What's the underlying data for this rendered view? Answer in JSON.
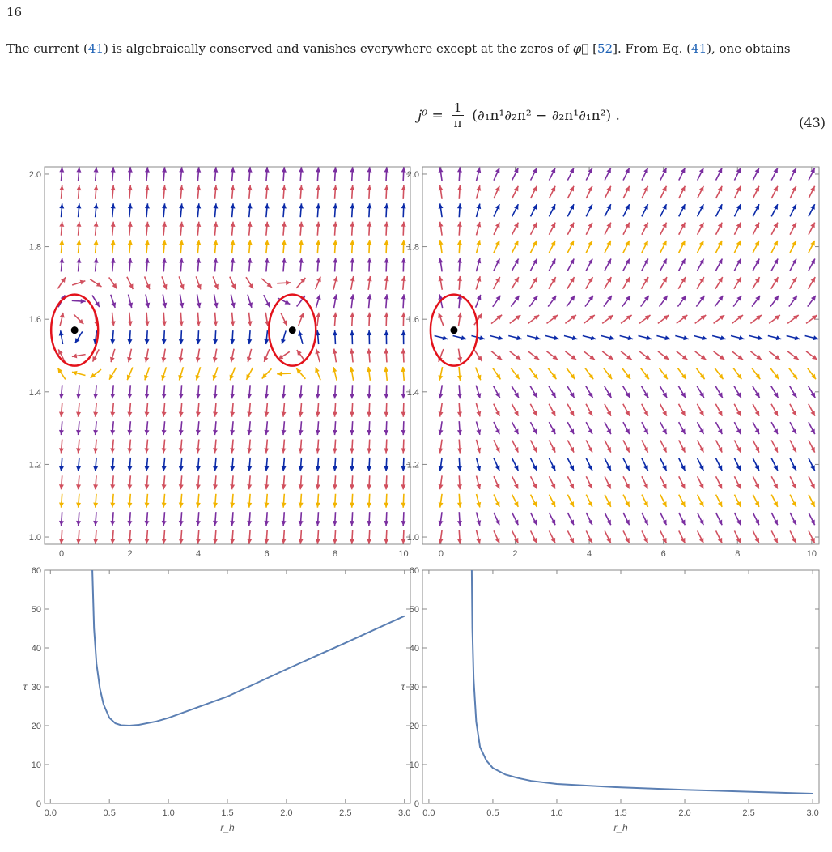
{
  "page": {
    "number": "16",
    "paragraph": {
      "part1": "The current (",
      "ref1": "41",
      "part2": ") is algebraically conserved and vanishes everywhere except at the zeros of ",
      "phi": "φ⃗",
      "part3": " [",
      "ref2": "52",
      "part4": "]. From Eq. (",
      "ref3": "41",
      "part5": "), one obtains"
    },
    "equation": {
      "lhs": "j⁰ =",
      "frac_num": "1",
      "frac_den": "π",
      "rhs": "(∂₁n¹∂₂n² − ∂₂n¹∂₁n²) .",
      "number": "(43)"
    }
  },
  "colors": {
    "pink": "#d1505e",
    "purple": "#7a2ea0",
    "blue": "#0b2aa8",
    "yellow": "#f2b400",
    "curve": "#5b7fb3",
    "circle": "#e3121b"
  },
  "chart_data": [
    {
      "type": "vector-field",
      "panel": "top-left",
      "xlim": [
        -0.5,
        10.2
      ],
      "ylim": [
        0.98,
        2.02
      ],
      "xticks": [
        "0",
        "2",
        "4",
        "6",
        "8",
        "10"
      ],
      "yticks": [
        "1.0",
        "1.2",
        "1.4",
        "1.6",
        "1.8",
        "2.0"
      ],
      "zero_points": [
        {
          "x": 0.38,
          "y": 1.57
        },
        {
          "x": 6.75,
          "y": 1.57
        }
      ]
    },
    {
      "type": "vector-field",
      "panel": "top-right",
      "xlim": [
        -0.5,
        10.2
      ],
      "ylim": [
        0.98,
        2.02
      ],
      "xticks": [
        "0",
        "2",
        "4",
        "6",
        "8",
        "10"
      ],
      "yticks": [
        "1.0",
        "1.2",
        "1.4",
        "1.6",
        "1.8",
        "2.0"
      ],
      "zero_points": [
        {
          "x": 0.35,
          "y": 1.57
        }
      ]
    },
    {
      "type": "line",
      "panel": "bottom-left",
      "xlabel": "r_h",
      "ylabel": "τ",
      "xlim": [
        -0.05,
        3.05
      ],
      "ylim": [
        0,
        60
      ],
      "xticks": [
        "0.0",
        "0.5",
        "1.0",
        "1.5",
        "2.0",
        "2.5",
        "3.0"
      ],
      "yticks": [
        "0",
        "10",
        "20",
        "30",
        "40",
        "50",
        "60"
      ],
      "x": [
        0.355,
        0.37,
        0.39,
        0.42,
        0.45,
        0.5,
        0.55,
        0.6,
        0.67,
        0.75,
        0.9,
        1.0,
        1.5,
        2.0,
        2.5,
        3.0
      ],
      "y": [
        60,
        45,
        36,
        29.5,
        25.5,
        22,
        20.6,
        20.1,
        20.0,
        20.2,
        21.1,
        22.0,
        27.5,
        34.5,
        41.3,
        48.2
      ]
    },
    {
      "type": "line",
      "panel": "bottom-right",
      "xlabel": "r_h",
      "ylabel": "τ",
      "xlim": [
        -0.05,
        3.05
      ],
      "ylim": [
        0,
        60
      ],
      "xticks": [
        "0.0",
        "0.5",
        "1.0",
        "1.5",
        "2.0",
        "2.5",
        "3.0"
      ],
      "yticks": [
        "0",
        "10",
        "20",
        "30",
        "40",
        "50",
        "60"
      ],
      "x": [
        0.335,
        0.34,
        0.35,
        0.37,
        0.4,
        0.45,
        0.5,
        0.6,
        0.7,
        0.8,
        1.0,
        1.5,
        2.0,
        2.5,
        3.0
      ],
      "y": [
        60,
        45,
        32,
        21,
        14.5,
        11,
        9.1,
        7.4,
        6.5,
        5.8,
        5.0,
        4.1,
        3.5,
        3.0,
        2.5
      ]
    }
  ]
}
